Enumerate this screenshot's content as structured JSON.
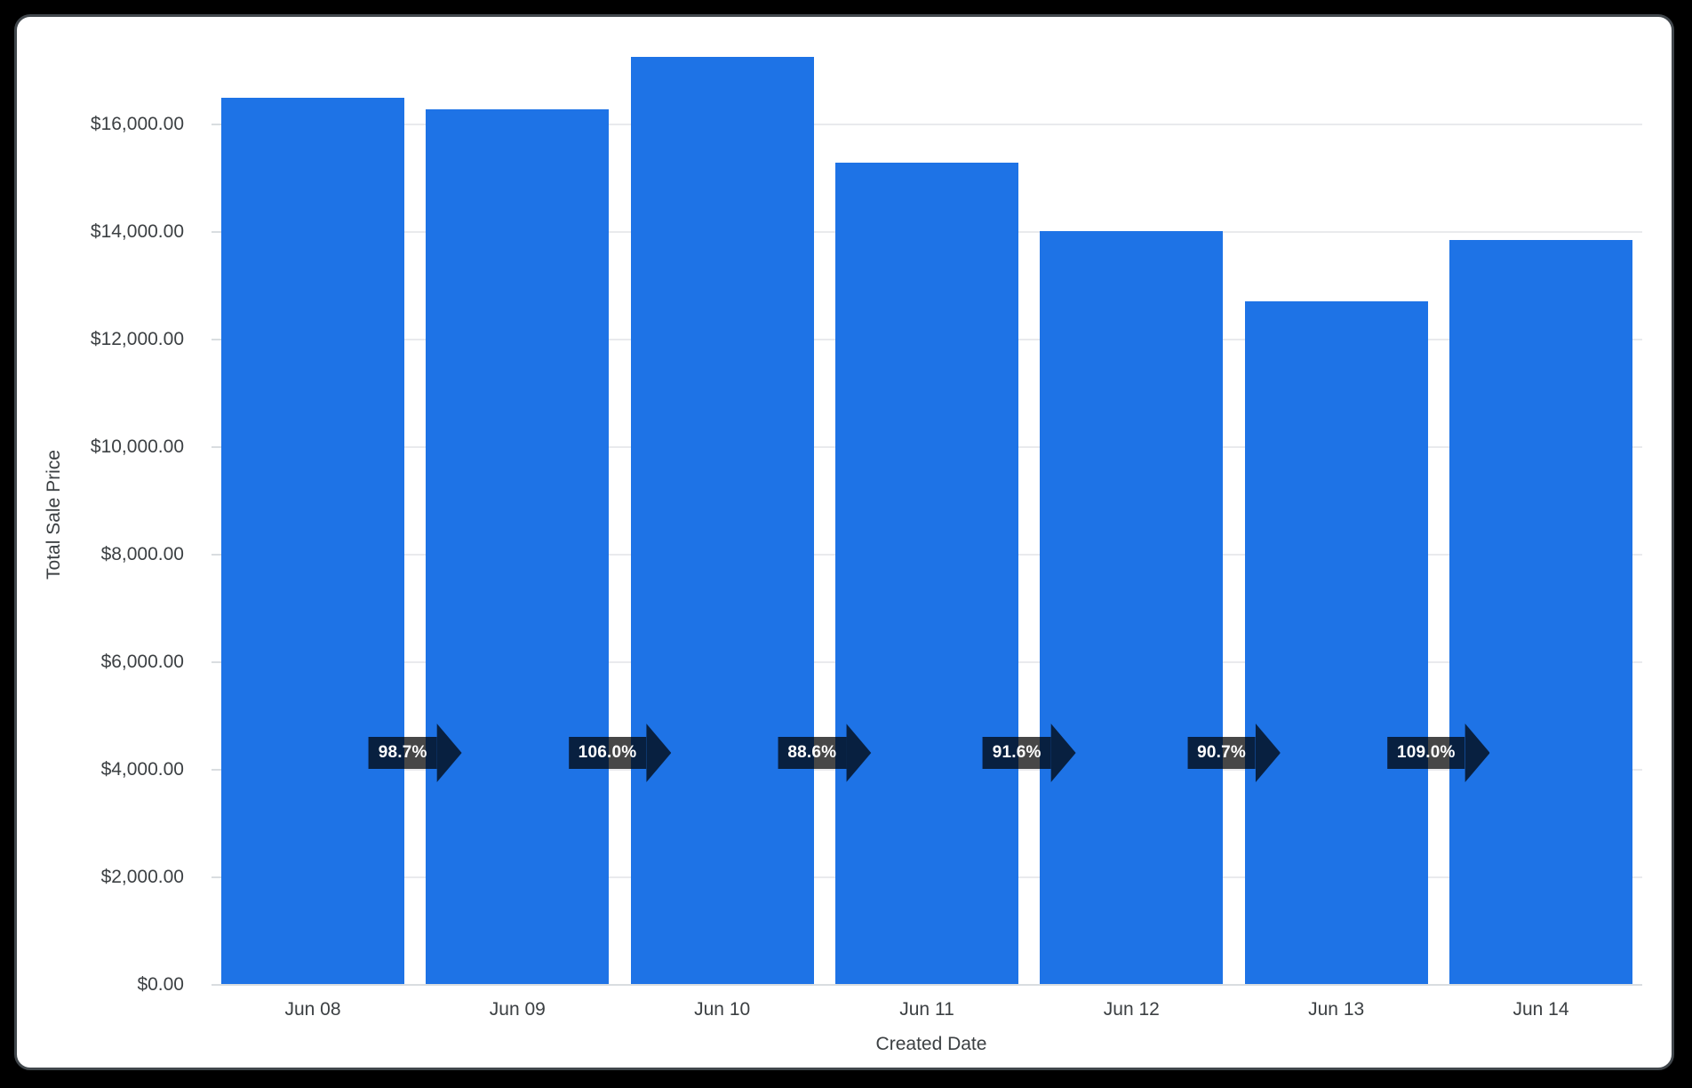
{
  "window": {
    "background_color": "#000000",
    "card_background": "#ffffff",
    "card_border_color": "#41474c"
  },
  "chart_data": {
    "type": "bar",
    "title": "",
    "xlabel": "Created Date",
    "ylabel": "Total Sale Price",
    "categories": [
      "Jun 08",
      "Jun 09",
      "Jun 10",
      "Jun 11",
      "Jun 12",
      "Jun 13",
      "Jun 14"
    ],
    "values": [
      16500,
      16286,
      17263,
      15295,
      14010,
      12707,
      13851
    ],
    "value_unit": "USD",
    "y_tick_labels": [
      "$0.00",
      "$2,000.00",
      "$4,000.00",
      "$6,000.00",
      "$8,000.00",
      "$10,000.00",
      "$12,000.00",
      "$14,000.00",
      "$16,000.00"
    ],
    "y_tick_values": [
      0,
      2000,
      4000,
      6000,
      8000,
      10000,
      12000,
      14000,
      16000
    ],
    "ylim": [
      0,
      17600
    ],
    "grid": true,
    "legend": "none",
    "pct_change_labels": [
      "98.7%",
      "106.0%",
      "88.6%",
      "91.6%",
      "90.7%",
      "109.0%"
    ],
    "colors": {
      "bar": "#1e73e6",
      "arrow_fill": "rgba(0,0,0,0.72)",
      "arrow_text": "#ffffff",
      "axis_text": "#3c4043",
      "gridline": "#e9eaed",
      "baseline": "#d9dde0"
    }
  }
}
